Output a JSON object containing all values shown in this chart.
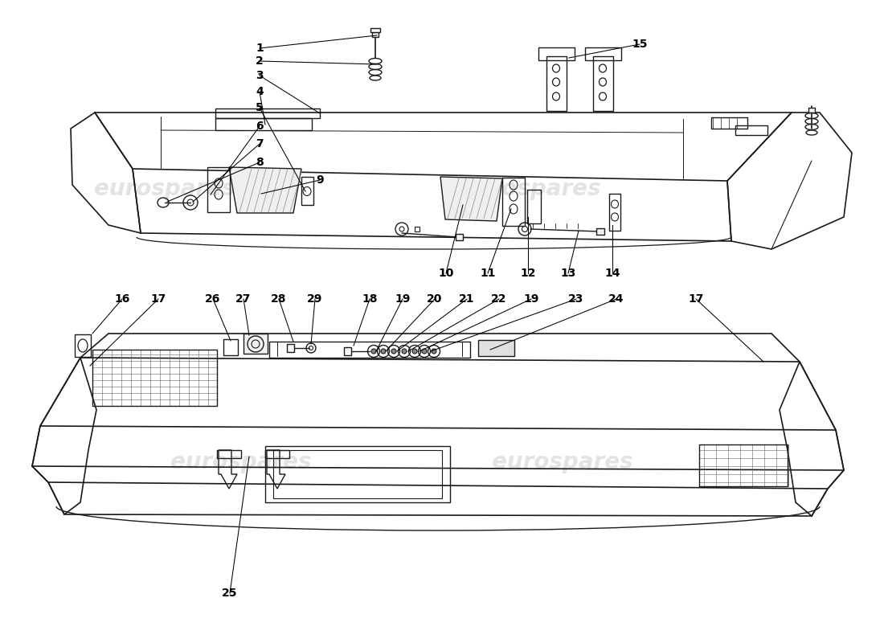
{
  "figsize": [
    11.0,
    8.0
  ],
  "dpi": 100,
  "bg": "#ffffff",
  "lc": "#1a1a1a",
  "wm_color": "#c8c8c8",
  "wm_alpha": 0.5,
  "watermarks": [
    [
      205,
      565,
      "eurospares"
    ],
    [
      660,
      565,
      "eurospares"
    ],
    [
      300,
      225,
      "eurospares"
    ],
    [
      700,
      225,
      "eurospares"
    ]
  ],
  "top_labels": [
    [
      "1",
      323,
      740
    ],
    [
      "2",
      323,
      724
    ],
    [
      "3",
      323,
      706
    ],
    [
      "4",
      323,
      686
    ],
    [
      "5",
      323,
      666
    ],
    [
      "6",
      323,
      643
    ],
    [
      "7",
      323,
      621
    ],
    [
      "8",
      323,
      598
    ],
    [
      "9",
      398,
      576
    ],
    [
      "10",
      555,
      460
    ],
    [
      "11",
      607,
      460
    ],
    [
      "12",
      657,
      460
    ],
    [
      "13",
      707,
      460
    ],
    [
      "14",
      762,
      460
    ],
    [
      "15",
      796,
      745
    ]
  ],
  "bottom_labels": [
    [
      "16",
      152,
      428
    ],
    [
      "17",
      197,
      428
    ],
    [
      "26",
      265,
      428
    ],
    [
      "27",
      303,
      428
    ],
    [
      "28",
      347,
      428
    ],
    [
      "29",
      392,
      428
    ],
    [
      "18",
      460,
      428
    ],
    [
      "19",
      501,
      428
    ],
    [
      "20",
      541,
      428
    ],
    [
      "21",
      581,
      428
    ],
    [
      "22",
      621,
      428
    ],
    [
      "19",
      661,
      428
    ],
    [
      "23",
      717,
      428
    ],
    [
      "24",
      767,
      428
    ],
    [
      "17",
      866,
      428
    ],
    [
      "25",
      286,
      62
    ]
  ]
}
